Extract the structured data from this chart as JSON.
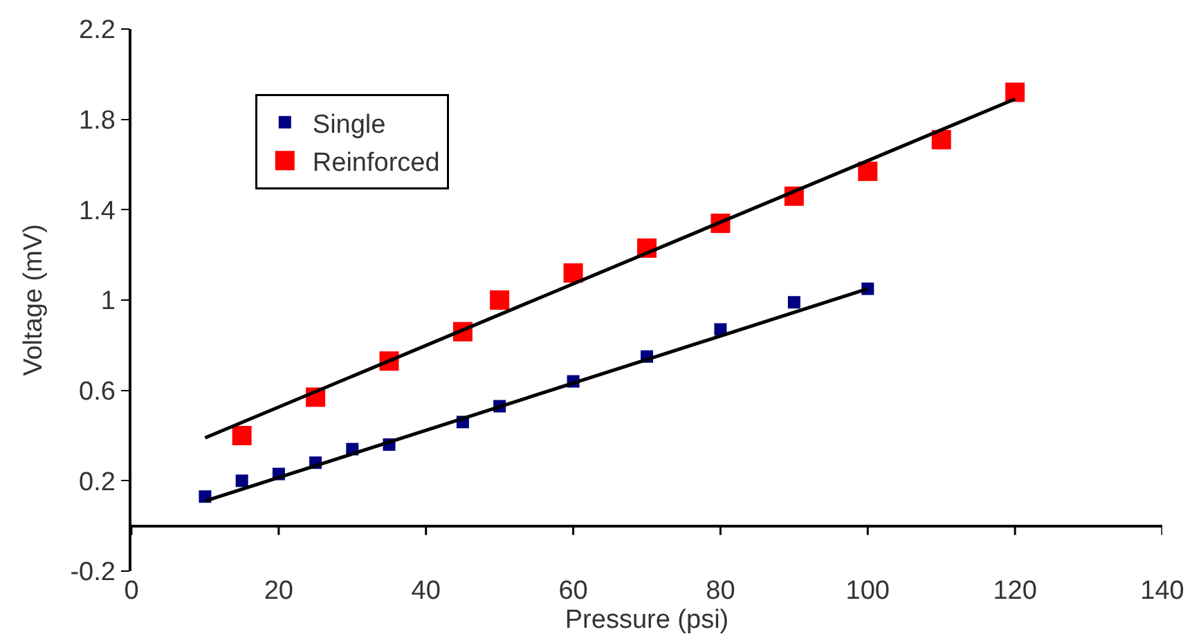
{
  "chart_data": {
    "type": "scatter",
    "xlabel": "Pressure (psi)",
    "ylabel": "Voltage (mV)",
    "xlim": [
      0,
      140
    ],
    "xticks": [
      0,
      20,
      40,
      60,
      80,
      100,
      120,
      140
    ],
    "ylim": [
      -0.2,
      2.2
    ],
    "yticks": [
      -0.2,
      0.2,
      0.6,
      1,
      1.4,
      1.8,
      2.2
    ],
    "legend": "top left",
    "series": [
      {
        "name": "Single",
        "marker": "square",
        "color": "#000080",
        "x": [
          10,
          15,
          20,
          25,
          30,
          35,
          45,
          50,
          60,
          70,
          80,
          90,
          100
        ],
        "values": [
          0.13,
          0.2,
          0.23,
          0.28,
          0.34,
          0.36,
          0.46,
          0.53,
          0.64,
          0.75,
          0.87,
          0.99,
          1.05
        ]
      },
      {
        "name": "Reinforced",
        "marker": "square",
        "color": "#ff0000",
        "x": [
          15,
          25,
          35,
          45,
          50,
          60,
          70,
          80,
          90,
          100,
          110,
          120
        ],
        "values": [
          0.4,
          0.57,
          0.73,
          0.86,
          1.0,
          1.12,
          1.23,
          1.34,
          1.46,
          1.57,
          1.71,
          1.92
        ]
      },
      {
        "type": "line",
        "marker": "none",
        "color": "#000000",
        "x": [
          10,
          100
        ],
        "values": [
          0.11,
          1.05
        ]
      },
      {
        "type": "line",
        "marker": "none",
        "color": "#000000",
        "x": [
          10,
          120
        ],
        "values": [
          0.39,
          1.89
        ]
      }
    ]
  }
}
